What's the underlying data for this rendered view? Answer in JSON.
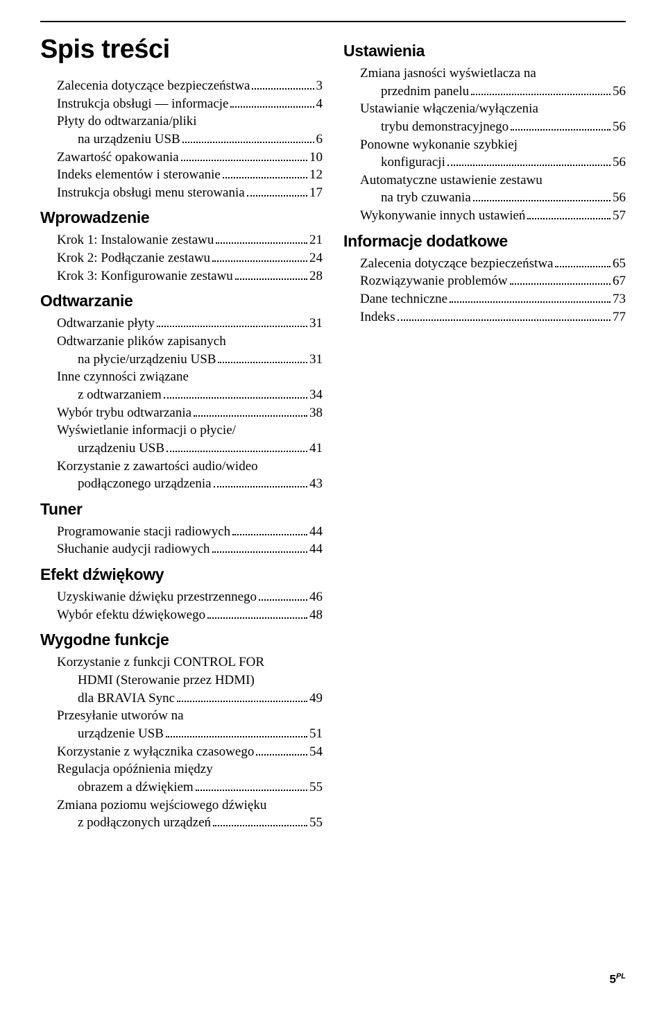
{
  "title": "Spis treści",
  "columns": [
    {
      "blocks": [
        {
          "type": "entries",
          "items": [
            {
              "lines": [
                "Zalecenia dotyczące bezpieczeństwa"
              ],
              "page": "3"
            },
            {
              "lines": [
                "Instrukcja obsługi — informacje"
              ],
              "page": "4"
            },
            {
              "lines": [
                "Płyty do odtwarzania/pliki",
                "na urządzeniu USB"
              ],
              "page": "6"
            },
            {
              "lines": [
                "Zawartość opakowania"
              ],
              "page": "10"
            },
            {
              "lines": [
                "Indeks elementów i sterowanie"
              ],
              "page": "12"
            },
            {
              "lines": [
                "Instrukcja obsługi menu sterowania"
              ],
              "page": "17"
            }
          ]
        },
        {
          "type": "heading",
          "text": "Wprowadzenie"
        },
        {
          "type": "entries",
          "items": [
            {
              "lines": [
                "Krok 1: Instalowanie zestawu"
              ],
              "page": "21"
            },
            {
              "lines": [
                "Krok 2: Podłączanie zestawu"
              ],
              "page": "24"
            },
            {
              "lines": [
                "Krok 3: Konfigurowanie zestawu"
              ],
              "page": "28"
            }
          ]
        },
        {
          "type": "heading",
          "text": "Odtwarzanie"
        },
        {
          "type": "entries",
          "items": [
            {
              "lines": [
                "Odtwarzanie płyty"
              ],
              "page": "31"
            },
            {
              "lines": [
                "Odtwarzanie plików zapisanych",
                "na płycie/urządzeniu USB"
              ],
              "page": "31"
            },
            {
              "lines": [
                "Inne czynności związane",
                "z odtwarzaniem"
              ],
              "page": "34"
            },
            {
              "lines": [
                "Wybór trybu odtwarzania"
              ],
              "page": "38"
            },
            {
              "lines": [
                "Wyświetlanie informacji o płycie/",
                "urządzeniu USB"
              ],
              "page": "41"
            },
            {
              "lines": [
                "Korzystanie z zawartości audio/wideo",
                "podłączonego urządzenia"
              ],
              "page": "43"
            }
          ]
        },
        {
          "type": "heading",
          "text": "Tuner"
        },
        {
          "type": "entries",
          "items": [
            {
              "lines": [
                "Programowanie stacji radiowych"
              ],
              "page": "44"
            },
            {
              "lines": [
                "Słuchanie audycji radiowych"
              ],
              "page": "44"
            }
          ]
        },
        {
          "type": "heading",
          "text": "Efekt dźwiękowy"
        },
        {
          "type": "entries",
          "items": [
            {
              "lines": [
                "Uzyskiwanie dźwięku przestrzennego"
              ],
              "page": "46"
            },
            {
              "lines": [
                "Wybór efektu dźwiękowego"
              ],
              "page": "48"
            }
          ]
        },
        {
          "type": "heading",
          "text": "Wygodne funkcje"
        },
        {
          "type": "entries",
          "items": [
            {
              "lines": [
                "Korzystanie z funkcji CONTROL FOR",
                "HDMI (Sterowanie przez HDMI)",
                "dla BRAVIA Sync"
              ],
              "page": "49"
            },
            {
              "lines": [
                "Przesyłanie utworów na",
                "urządzenie USB"
              ],
              "page": "51"
            },
            {
              "lines": [
                "Korzystanie z wyłącznika czasowego"
              ],
              "page": "54"
            },
            {
              "lines": [
                "Regulacja opóźnienia między",
                "obrazem a dźwiękiem"
              ],
              "page": "55"
            },
            {
              "lines": [
                "Zmiana poziomu wejściowego dźwięku",
                "z podłączonych urządzeń"
              ],
              "page": "55"
            }
          ]
        }
      ]
    },
    {
      "blocks": [
        {
          "type": "heading",
          "text": "Ustawienia"
        },
        {
          "type": "entries",
          "items": [
            {
              "lines": [
                "Zmiana jasności wyświetlacza na",
                "przednim panelu"
              ],
              "page": "56"
            },
            {
              "lines": [
                "Ustawianie włączenia/wyłączenia",
                "trybu demonstracyjnego"
              ],
              "page": "56"
            },
            {
              "lines": [
                "Ponowne wykonanie szybkiej",
                "konfiguracji"
              ],
              "page": "56"
            },
            {
              "lines": [
                "Automatyczne ustawienie zestawu",
                "na tryb czuwania"
              ],
              "page": "56"
            },
            {
              "lines": [
                "Wykonywanie innych ustawień"
              ],
              "page": "57"
            }
          ]
        },
        {
          "type": "heading",
          "text": "Informacje dodatkowe"
        },
        {
          "type": "entries",
          "items": [
            {
              "lines": [
                "Zalecenia dotyczące bezpieczeństwa"
              ],
              "page": "65"
            },
            {
              "lines": [
                "Rozwiązywanie problemów"
              ],
              "page": "67"
            },
            {
              "lines": [
                "Dane techniczne"
              ],
              "page": "73"
            },
            {
              "lines": [
                "Indeks"
              ],
              "page": "77"
            }
          ]
        }
      ]
    }
  ],
  "footer": {
    "page": "5",
    "lang": "PL"
  }
}
